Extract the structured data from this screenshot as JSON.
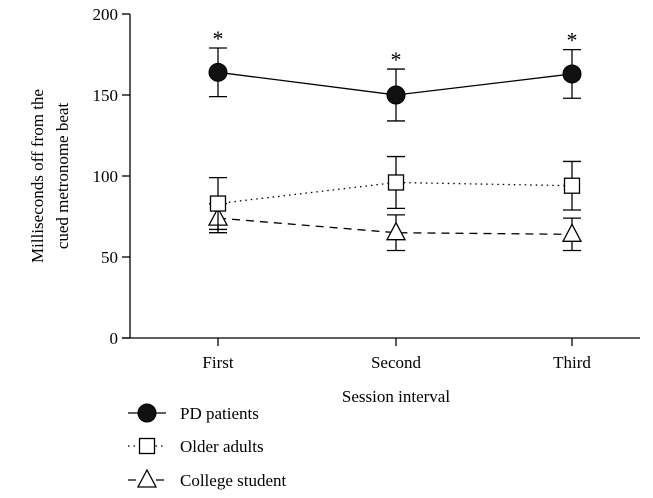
{
  "chart_data": {
    "type": "line",
    "title": "",
    "xlabel": "Session interval",
    "ylabel_lines": [
      "Milliseconds off from the",
      "cued metronome beat"
    ],
    "categories": [
      "First",
      "Second",
      "Third"
    ],
    "ylim": [
      0,
      200
    ],
    "yticks": [
      "0",
      "50",
      "100",
      "150",
      "200"
    ],
    "grid": false,
    "legend_position": "bottom-left",
    "series": [
      {
        "name": "PD patients",
        "marker": "filled-circle",
        "line_style": "solid",
        "values": [
          164,
          150,
          163
        ],
        "error": [
          15,
          16,
          15
        ],
        "annotations": [
          "*",
          "*",
          "*"
        ]
      },
      {
        "name": "Older adults",
        "marker": "open-square",
        "line_style": "dotted",
        "values": [
          83,
          96,
          94
        ],
        "error": [
          16,
          16,
          15
        ],
        "annotations": [
          "",
          "",
          ""
        ]
      },
      {
        "name": "College student",
        "marker": "open-triangle",
        "line_style": "dashed",
        "values": [
          74,
          65,
          64
        ],
        "error": [
          9,
          11,
          10
        ],
        "annotations": [
          "",
          "",
          ""
        ]
      }
    ]
  }
}
